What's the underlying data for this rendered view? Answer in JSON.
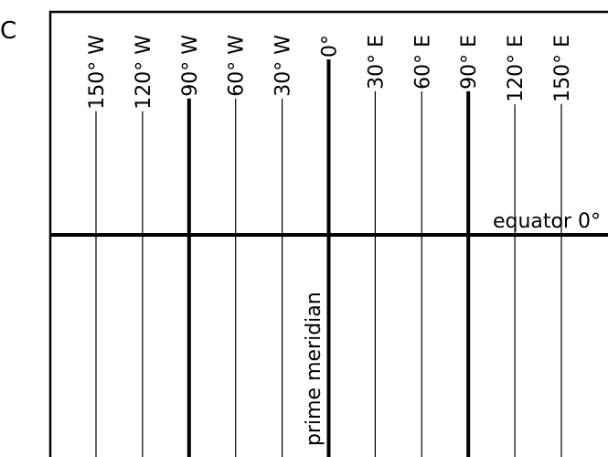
{
  "panel_label": "C",
  "meridians": [
    {
      "label": "150° W",
      "major": false
    },
    {
      "label": "120° W",
      "major": false
    },
    {
      "label": "90° W",
      "major": true
    },
    {
      "label": "60° W",
      "major": false
    },
    {
      "label": "30° W",
      "major": false
    },
    {
      "label": "0°",
      "major": true
    },
    {
      "label": "30° E",
      "major": false
    },
    {
      "label": "60° E",
      "major": false
    },
    {
      "label": "90° E",
      "major": true
    },
    {
      "label": "120° E",
      "major": false
    },
    {
      "label": "150° E",
      "major": false
    }
  ],
  "equator_label": "equator 0°",
  "prime_meridian_label": "prime meridian"
}
